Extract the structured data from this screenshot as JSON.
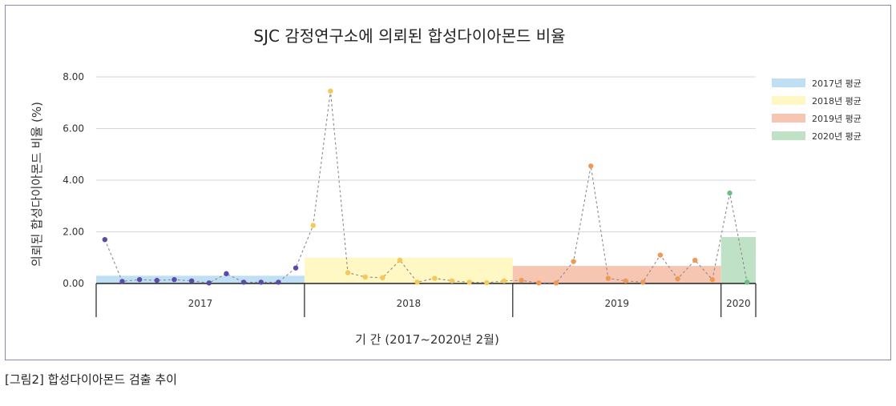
{
  "caption": "[그림2] 합성다이아몬드 검출 추이",
  "chart_data": {
    "type": "line",
    "title": "SJC 감정연구소에 의뢰된 합성다이아몬드 비율",
    "xlabel": "기  간 (2017~2020년 2월)",
    "ylabel": "의뢰된 합성다이아몬드 비율 (%)",
    "ylim": [
      0,
      8
    ],
    "yticks": [
      "0.00",
      "2.00",
      "4.00",
      "6.00",
      "8.00"
    ],
    "grid": true,
    "legend_position": "right",
    "years": [
      {
        "label": "2017",
        "start": 0,
        "end": 12,
        "average": 0.3,
        "color": "#bfe0f4",
        "dot_color": "#5b4aa8",
        "legend": "2017년 평균"
      },
      {
        "label": "2018",
        "start": 12,
        "end": 24,
        "average": 1.0,
        "color": "#fff7c4",
        "dot_color": "#f6c85a",
        "legend": "2018년 평균"
      },
      {
        "label": "2019",
        "start": 24,
        "end": 36,
        "average": 0.68,
        "color": "#f6c6b2",
        "dot_color": "#ee9a55",
        "legend": "2019년 평균"
      },
      {
        "label": "2020",
        "start": 36,
        "end": 38,
        "average": 1.8,
        "color": "#bfe2c6",
        "dot_color": "#6cbf82",
        "legend": "2020년 평균"
      }
    ],
    "series": [
      {
        "values": [
          1.7,
          0.08,
          0.15,
          0.12,
          0.15,
          0.1,
          0.02,
          0.38,
          0.05,
          0.05,
          0.05,
          0.6,
          2.25,
          7.45,
          0.42,
          0.25,
          0.22,
          0.9,
          0.05,
          0.2,
          0.1,
          0.05,
          0.03,
          0.1,
          0.12,
          0.02,
          0.02,
          0.85,
          4.55,
          0.2,
          0.1,
          0.05,
          1.1,
          0.18,
          0.9,
          0.15,
          3.5,
          0.05
        ]
      }
    ]
  }
}
